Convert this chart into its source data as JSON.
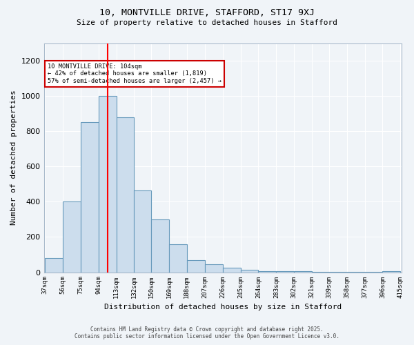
{
  "title1": "10, MONTVILLE DRIVE, STAFFORD, ST17 9XJ",
  "title2": "Size of property relative to detached houses in Stafford",
  "xlabel": "Distribution of detached houses by size in Stafford",
  "ylabel": "Number of detached properties",
  "annotation_text": "10 MONTVILLE DRIVE: 104sqm\n← 42% of detached houses are smaller (1,819)\n57% of semi-detached houses are larger (2,457) →",
  "annotation_box_color": "#ffffff",
  "annotation_box_edge_color": "#cc0000",
  "footer1": "Contains HM Land Registry data © Crown copyright and database right 2025.",
  "footer2": "Contains public sector information licensed under the Open Government Licence v3.0.",
  "bg_color": "#f0f4f8",
  "plot_bg_color": "#f0f4f8",
  "bar_color": "#ccdded",
  "bar_edge_color": "#6699bb",
  "red_line_x": 104,
  "ylim": [
    0,
    1300
  ],
  "yticks": [
    0,
    200,
    400,
    600,
    800,
    1000,
    1200
  ],
  "bin_edges": [
    37,
    56,
    75,
    94,
    113,
    132,
    150,
    169,
    188,
    207,
    226,
    245,
    264,
    283,
    302,
    321,
    339,
    358,
    377,
    396,
    415
  ],
  "hist_counts": [
    80,
    400,
    850,
    1000,
    880,
    465,
    300,
    160,
    70,
    45,
    25,
    15,
    5,
    5,
    8,
    3,
    3,
    2,
    2,
    8
  ],
  "grid_color": "#ffffff",
  "spine_color": "#aabbcc"
}
